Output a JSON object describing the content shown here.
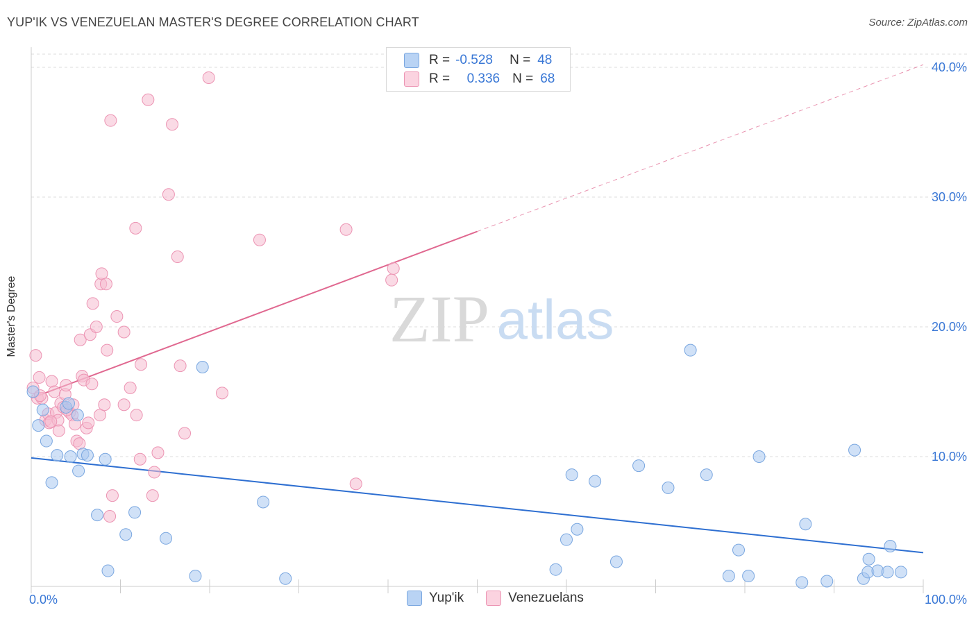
{
  "header": {
    "title": "YUP'IK VS VENEZUELAN MASTER'S DEGREE CORRELATION CHART",
    "source": "Source: ZipAtlas.com"
  },
  "legend": {
    "r_label": "R =",
    "n_label": "N =",
    "rows": [
      {
        "r": "-0.528",
        "n": "48"
      },
      {
        "r": "0.336",
        "n": "68"
      }
    ],
    "series_names": [
      "Yup'ik",
      "Venezuelans"
    ]
  },
  "watermark": {
    "zip": "ZIP",
    "atlas": "atlas"
  },
  "colors": {
    "yupik_fill": "#a9c8f0",
    "yupik_stroke": "#7aa7e0",
    "yupik_line": "#2e6fd1",
    "venez_fill": "#f6bcd0",
    "venez_stroke": "#ec94b3",
    "venez_line": "#e06890",
    "tick_label": "#3a78d6",
    "grid": "#dddddd"
  },
  "chart_data": {
    "type": "scatter",
    "title": "YUP'IK VS VENEZUELAN MASTER'S DEGREE CORRELATION CHART",
    "xlabel": "",
    "ylabel": "Master's Degree",
    "xlim": [
      0,
      100
    ],
    "ylim": [
      0,
      40
    ],
    "x_tick_labels": [
      "0.0%",
      "100.0%"
    ],
    "y_ticks": [
      10,
      20,
      30,
      40
    ],
    "y_tick_labels": [
      "10.0%",
      "20.0%",
      "30.0%",
      "40.0%"
    ],
    "series": [
      {
        "name": "Yup'ik",
        "r": -0.528,
        "n": 48,
        "trend": {
          "x0": 0,
          "y0": 9.9,
          "x1": 100,
          "y1": 2.6
        },
        "points": [
          [
            0.2,
            15.0
          ],
          [
            0.8,
            12.4
          ],
          [
            1.3,
            13.6
          ],
          [
            1.7,
            11.2
          ],
          [
            2.3,
            8.0
          ],
          [
            2.9,
            10.1
          ],
          [
            3.9,
            13.8
          ],
          [
            4.2,
            14.1
          ],
          [
            4.4,
            10.0
          ],
          [
            5.2,
            13.2
          ],
          [
            5.3,
            8.9
          ],
          [
            5.8,
            10.2
          ],
          [
            6.3,
            10.1
          ],
          [
            7.4,
            5.5
          ],
          [
            8.3,
            9.8
          ],
          [
            8.6,
            1.2
          ],
          [
            10.6,
            4.0
          ],
          [
            11.6,
            5.7
          ],
          [
            15.1,
            3.7
          ],
          [
            18.4,
            0.8
          ],
          [
            19.2,
            16.9
          ],
          [
            26.0,
            6.5
          ],
          [
            28.5,
            0.6
          ],
          [
            58.8,
            1.3
          ],
          [
            60.0,
            3.6
          ],
          [
            60.6,
            8.6
          ],
          [
            61.2,
            4.4
          ],
          [
            63.2,
            8.1
          ],
          [
            65.6,
            1.9
          ],
          [
            68.1,
            9.3
          ],
          [
            71.4,
            7.6
          ],
          [
            73.9,
            18.2
          ],
          [
            75.7,
            8.6
          ],
          [
            78.2,
            0.8
          ],
          [
            79.3,
            2.8
          ],
          [
            80.4,
            0.8
          ],
          [
            81.6,
            10.0
          ],
          [
            86.4,
            0.3
          ],
          [
            86.8,
            4.8
          ],
          [
            89.2,
            0.4
          ],
          [
            92.3,
            10.5
          ],
          [
            93.3,
            0.6
          ],
          [
            93.9,
            2.1
          ],
          [
            93.8,
            1.1
          ],
          [
            94.9,
            1.2
          ],
          [
            96.0,
            1.1
          ],
          [
            96.3,
            3.1
          ],
          [
            97.5,
            1.1
          ]
        ]
      },
      {
        "name": "Venezuelans",
        "r": 0.336,
        "n": 68,
        "trend": {
          "x0": 0,
          "y0": 14.5,
          "x1": 100,
          "y1": 40.2,
          "solid_until_x": 50
        },
        "points": [
          [
            0.2,
            15.3
          ],
          [
            0.5,
            17.8
          ],
          [
            0.7,
            14.5
          ],
          [
            0.9,
            16.1
          ],
          [
            1.2,
            14.5
          ],
          [
            1.6,
            12.8
          ],
          [
            1.9,
            13.3
          ],
          [
            2.0,
            12.6
          ],
          [
            2.3,
            15.8
          ],
          [
            2.6,
            15.0
          ],
          [
            2.8,
            13.4
          ],
          [
            3.0,
            12.8
          ],
          [
            3.1,
            12.0
          ],
          [
            3.3,
            14.1
          ],
          [
            3.6,
            13.8
          ],
          [
            3.8,
            14.8
          ],
          [
            3.9,
            15.5
          ],
          [
            4.3,
            13.4
          ],
          [
            4.6,
            13.2
          ],
          [
            4.7,
            14.0
          ],
          [
            4.9,
            12.5
          ],
          [
            5.1,
            11.2
          ],
          [
            5.4,
            11.0
          ],
          [
            5.5,
            19.0
          ],
          [
            5.7,
            16.2
          ],
          [
            5.9,
            15.9
          ],
          [
            6.2,
            12.2
          ],
          [
            6.4,
            12.6
          ],
          [
            6.6,
            19.4
          ],
          [
            6.8,
            15.6
          ],
          [
            6.9,
            21.8
          ],
          [
            7.3,
            20.0
          ],
          [
            7.7,
            13.2
          ],
          [
            7.8,
            23.3
          ],
          [
            7.9,
            24.1
          ],
          [
            8.2,
            14.0
          ],
          [
            8.4,
            23.3
          ],
          [
            8.5,
            18.2
          ],
          [
            8.8,
            5.4
          ],
          [
            8.9,
            35.9
          ],
          [
            9.1,
            7.0
          ],
          [
            9.6,
            20.8
          ],
          [
            10.4,
            19.6
          ],
          [
            10.4,
            14.0
          ],
          [
            11.1,
            15.3
          ],
          [
            11.7,
            27.6
          ],
          [
            11.8,
            13.2
          ],
          [
            12.2,
            9.8
          ],
          [
            12.3,
            17.1
          ],
          [
            13.1,
            37.5
          ],
          [
            13.6,
            7.0
          ],
          [
            13.8,
            8.8
          ],
          [
            14.2,
            10.3
          ],
          [
            15.4,
            30.2
          ],
          [
            15.8,
            35.6
          ],
          [
            16.4,
            25.4
          ],
          [
            16.7,
            17.0
          ],
          [
            17.2,
            11.8
          ],
          [
            19.9,
            39.2
          ],
          [
            21.4,
            14.9
          ],
          [
            25.6,
            26.7
          ],
          [
            35.3,
            27.5
          ],
          [
            36.4,
            7.9
          ],
          [
            40.4,
            23.6
          ],
          [
            40.6,
            24.5
          ],
          [
            1.0,
            14.7
          ],
          [
            2.2,
            12.7
          ],
          [
            4.0,
            13.6
          ]
        ]
      }
    ]
  }
}
